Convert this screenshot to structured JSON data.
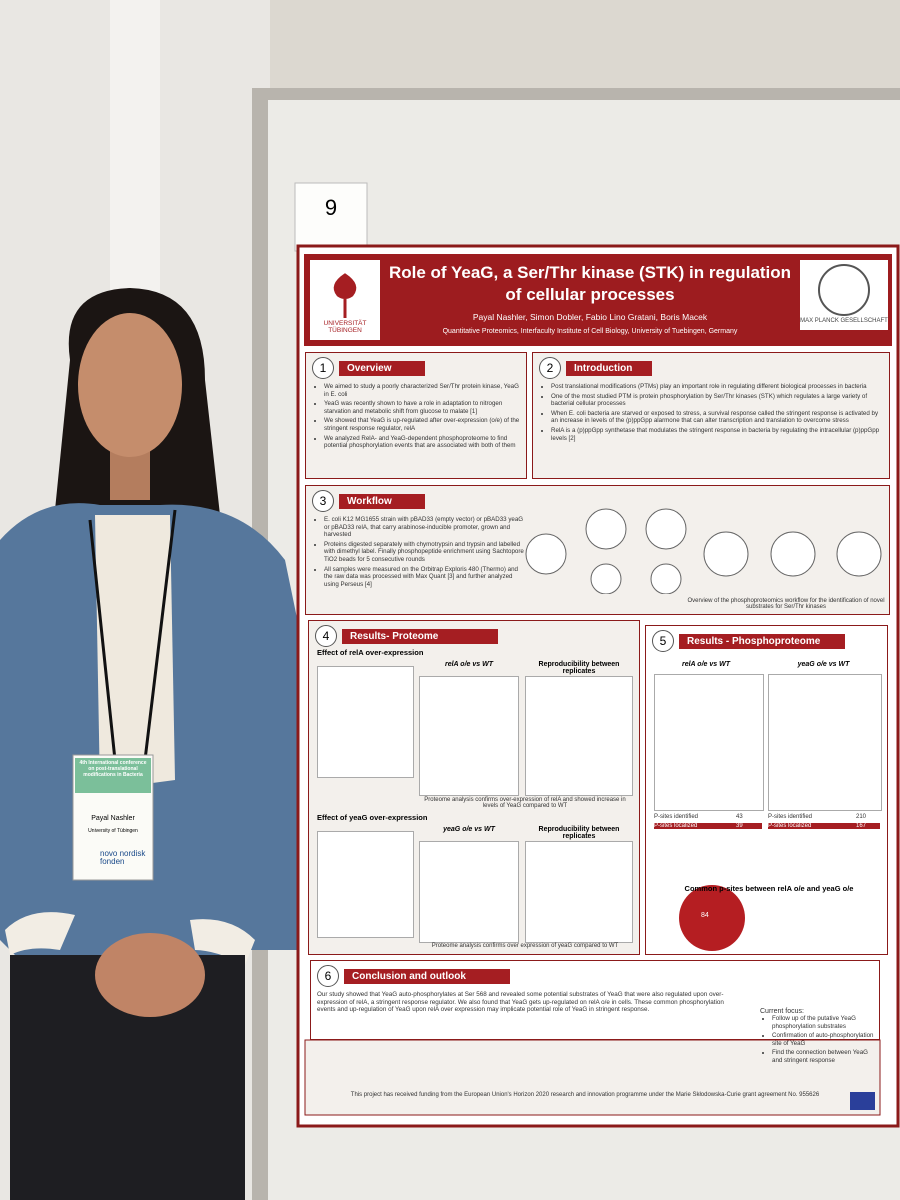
{
  "poster_number": "9",
  "poster": {
    "title": "Role of YeaG, a Ser/Thr kinase (STK) in regulation of cellular processes",
    "university": "UNIVERSITÄT TÜBINGEN",
    "institute": "MAX PLANCK GESELLSCHAFT",
    "authors": "Payal Nashler, Simon Dobler, Fabio Lino Gratani, Boris Macek",
    "affiliation": "Quantitative Proteomics, Interfaculty Institute of Cell Biology, University of Tuebingen, Germany",
    "sections": [
      {
        "number": "1",
        "heading": "Overview",
        "bullets": [
          "We aimed to study a poorly characterized Ser/Thr protein kinase, YeaG in E. coli",
          "YeaG was recently shown to have a role in adaptation to nitrogen starvation and metabolic shift from glucose to malate [1]",
          "We showed that YeaG is up-regulated after over-expression (o/e) of the stringent response regulator, relA",
          "We analyzed RelA- and YeaG-dependent phosphoproteome to find potential phosphorylation events that are associated with both of them"
        ]
      },
      {
        "number": "2",
        "heading": "Introduction",
        "bullets": [
          "Post translational modifications (PTMs) play an important role in regulating different biological processes in bacteria",
          "One of the most studied PTM is protein phosphorylation by Ser/Thr kinases (STK) which regulates a large variety of bacterial cellular processes",
          "When E. coli bacteria are starved or exposed to stress, a survival response called the stringent response is activated by an increase in levels of the (p)ppGpp alarmone that can alter transcription and translation to overcome stress",
          "RelA is a (p)ppGpp synthetase that modulates the stringent response in bacteria by regulating the intracellular (p)ppGpp levels [2]"
        ]
      },
      {
        "number": "3",
        "heading": "Workflow",
        "bullets": [
          "E. coli K12 MG1655 strain with pBAD33 (empty vector) or pBAD33 yeaG or pBAD33 relA, that carry arabinose-inducible promoter, grown and harvested",
          "Proteins digested separately with chymotrypsin and trypsin and labelled with dimethyl label. Finally phosphopeptide enrichment using Sachtopore TiO2 beads for 5 consecutive rounds",
          "All samples were measured on the Orbitrap Exploris 480 (Thermo) and the raw data was processed with Max Quant [3] and further analyzed using Perseus [4]"
        ],
        "caption": "Overview of the phosphoproteomics workflow for the identification of novel substrates for Ser/Thr kinases"
      },
      {
        "number": "4",
        "heading": "Results- Proteome",
        "subheadings": [
          "Effect of relA over-expression",
          "Effect of yeaG over-expression"
        ],
        "plot_titles": [
          "relA o/e vs WT",
          "Reproducibility between replicates",
          "yeaG o/e vs WT",
          "Reproducibility between replicates"
        ],
        "captions": [
          "Proteome analysis confirms over-expression of relA and showed increase in levels of YeaG compared to WT",
          "Proteome analysis confirms over expression of yeaG compared to WT"
        ]
      },
      {
        "number": "5",
        "heading": "Results - Phosphoproteome",
        "plot_titles": [
          "relA o/e vs WT",
          "yeaG o/e vs WT"
        ],
        "table_labels": [
          "P-sites identified",
          "P-sites localized"
        ],
        "relA_counts": [
          "43",
          "39"
        ],
        "yeaG_counts": [
          "210",
          "167"
        ],
        "venn_title": "Common p-sites between relA o/e and yeaG o/e",
        "venn_overlap": "84"
      },
      {
        "number": "6",
        "heading": "Conclusion and outlook",
        "text": "Our study showed that YeaG auto-phosphorylates at Ser 568 and revealed some potential substrates of YeaG that were also regulated upon over-expression of relA, a stringent response regulator. We also found that YeaG gets up-regulated on relA o/e in cells. These common phosphorylation events and up-regulation of YeaG upon relA over expression may implicate potential role of YeaG in stringent response.",
        "focus_title": "Current focus:",
        "focus": [
          "Follow up of the putative YeaG phosphorylation substrates",
          "Confirmation of auto-phosphorylation site of YeaG",
          "Find the connection between YeaG and stringent response"
        ]
      }
    ],
    "funding": "This project has received funding from the European Union's Horizon 2020 research and innovation programme under the Marie Skłodowska-Curie grant agreement No. 955626"
  },
  "badge": {
    "conference": "4th International conference on post-translational modifications in Bacteria",
    "name": "Payal Nashler",
    "affiliation": "University of Tübingen",
    "sponsor": "novo nordisk fonden"
  }
}
